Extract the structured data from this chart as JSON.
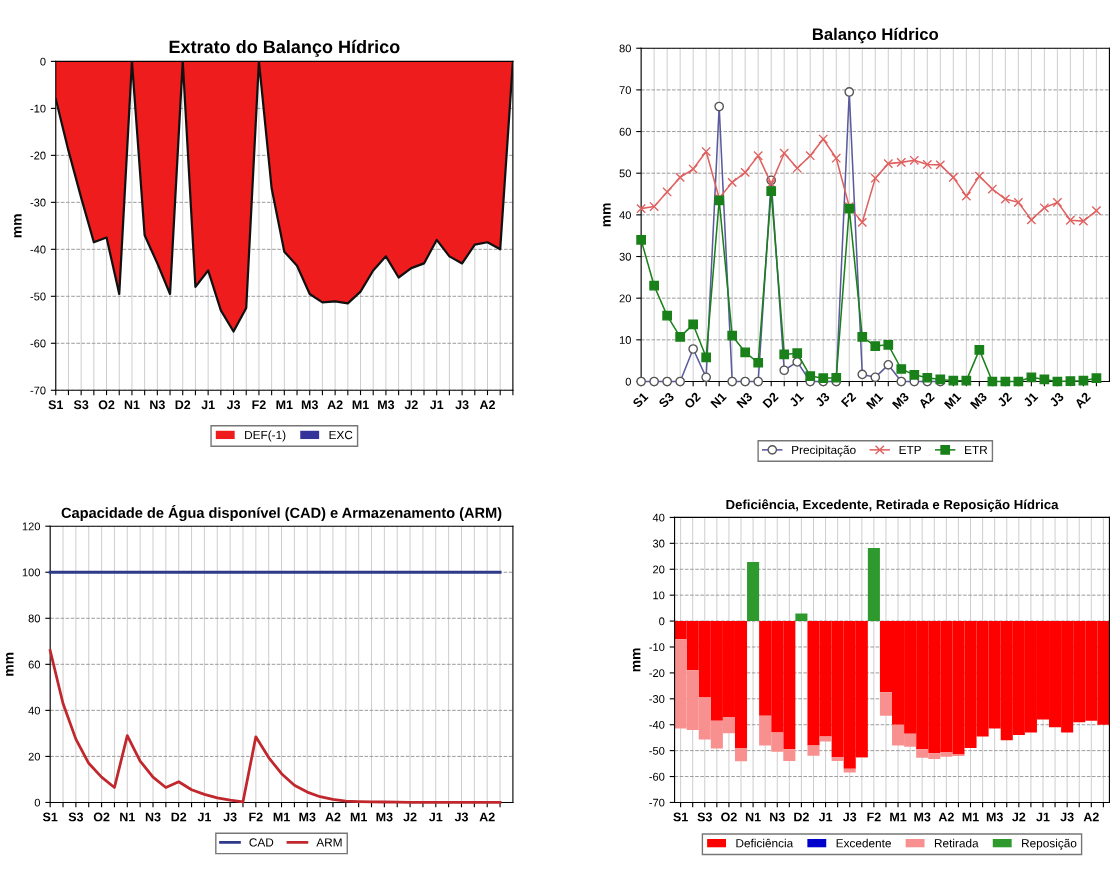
{
  "chart_data": [
    {
      "type": "area",
      "title": "Extrato do Balanço Hídrico",
      "ylabel": "mm",
      "categories": [
        "S1",
        null,
        "S3",
        null,
        "O2",
        null,
        "N1",
        null,
        "N3",
        null,
        "D2",
        null,
        "J1",
        null,
        "J3",
        null,
        "F2",
        null,
        "M1",
        null,
        "M3",
        null,
        "A2",
        null,
        "M1",
        null,
        "M3",
        null,
        "J2",
        null,
        "J1",
        null,
        "J3",
        null,
        "A2",
        null,
        null
      ],
      "series": [
        {
          "name": "DEF(-1)",
          "color": "#ee1c1c",
          "values": [
            -8,
            -19,
            -29,
            -38.5,
            -37.5,
            -49.5,
            0,
            -37,
            -43,
            -49.5,
            0,
            -48,
            -44.5,
            -53,
            -57.5,
            -52.5,
            0,
            -27,
            -40.5,
            -43.5,
            -49.5,
            -51.3,
            -51.1,
            -51.5,
            -49,
            -44.5,
            -41.5,
            -46,
            -44,
            -43,
            -38,
            -41.5,
            -43,
            -39,
            -38.5,
            -40,
            0
          ]
        },
        {
          "name": "EXC",
          "color": "#333399",
          "values": [
            null,
            null,
            null,
            null,
            null,
            null,
            null,
            null,
            null,
            null,
            null,
            null,
            null,
            null,
            null,
            null,
            null,
            null,
            null,
            null,
            null,
            null,
            null,
            null,
            null,
            null,
            null,
            null,
            null,
            null,
            null,
            null,
            null,
            null,
            null,
            null,
            null
          ]
        }
      ],
      "ylim": [
        -70,
        0
      ],
      "yticks": [
        -70,
        -60,
        -50,
        -40,
        -30,
        -20,
        -10,
        0
      ],
      "grid": true,
      "legend": "bottom"
    },
    {
      "type": "line",
      "title": "Balanço Hídrico",
      "ylabel": "mm",
      "categories": [
        "S1",
        null,
        "S3",
        null,
        "O2",
        null,
        "N1",
        null,
        "N3",
        null,
        "D2",
        null,
        "J1",
        null,
        "J3",
        null,
        "F2",
        null,
        "M1",
        null,
        "M3",
        null,
        "A2",
        null,
        "M1",
        null,
        "M3",
        null,
        "J2",
        null,
        "J1",
        null,
        "J3",
        null,
        "A2",
        null
      ],
      "series": [
        {
          "name": "Precipitação",
          "color": "#5a5a9e",
          "marker": "circle",
          "values": [
            0,
            0,
            0,
            0,
            7.8,
            1,
            66,
            0,
            0,
            0,
            48.3,
            2.7,
            4.7,
            0,
            0,
            0,
            69.5,
            1.7,
            1,
            4,
            0,
            0,
            0,
            0,
            null,
            null,
            null,
            null,
            null,
            null,
            null,
            null,
            null,
            null,
            null,
            null
          ]
        },
        {
          "name": "ETP",
          "color": "#e06060",
          "marker": "cross",
          "values": [
            41.5,
            42,
            45.5,
            49,
            51,
            55.2,
            44,
            47.8,
            50.2,
            54.2,
            47.5,
            54.8,
            51.2,
            54.2,
            58.2,
            53.6,
            42,
            38.2,
            48.8,
            52.3,
            52.6,
            53.1,
            52.1,
            52,
            49,
            44.5,
            49.3,
            46.2,
            43.8,
            43,
            38.8,
            41.7,
            43,
            38.7,
            38.5,
            41
          ]
        },
        {
          "name": "ETR",
          "color": "#1a801a",
          "marker": "square",
          "values": [
            34,
            23,
            15.8,
            10.7,
            13.7,
            5.8,
            43.5,
            11,
            7,
            4.5,
            45.7,
            6.5,
            6.8,
            1.3,
            0.8,
            0.9,
            41.5,
            10.7,
            8.5,
            8.8,
            3,
            1.6,
            0.9,
            0.5,
            0.2,
            0.2,
            7.6,
            0,
            0,
            0,
            1,
            0.5,
            0,
            0.1,
            0.2,
            0.8
          ]
        }
      ],
      "ylim": [
        0,
        80
      ],
      "yticks": [
        0,
        10,
        20,
        30,
        40,
        50,
        60,
        70,
        80
      ],
      "grid": true,
      "legend": "bottom"
    },
    {
      "type": "line",
      "title": "Capacidade de Água disponível (CAD) e Armazenamento (ARM)",
      "ylabel": "mm",
      "categories": [
        "S1",
        null,
        "S3",
        null,
        "O2",
        null,
        "N1",
        null,
        "N3",
        null,
        "D2",
        null,
        "J1",
        null,
        "J3",
        null,
        "F2",
        null,
        "M1",
        null,
        "M3",
        null,
        "A2",
        null,
        "M1",
        null,
        "M3",
        null,
        "J2",
        null,
        "J1",
        null,
        "J3",
        null,
        "A2",
        null
      ],
      "series": [
        {
          "name": "CAD",
          "color": "#2e3a87",
          "values": [
            100,
            100,
            100,
            100,
            100,
            100,
            100,
            100,
            100,
            100,
            100,
            100,
            100,
            100,
            100,
            100,
            100,
            100,
            100,
            100,
            100,
            100,
            100,
            100,
            100,
            100,
            100,
            100,
            100,
            100,
            100,
            100,
            100,
            100,
            100,
            100
          ]
        },
        {
          "name": "ARM",
          "color": "#c0282d",
          "values": [
            66,
            43,
            27.5,
            17,
            11,
            6.5,
            29,
            18,
            11,
            6.5,
            9,
            5.5,
            3.5,
            2,
            1,
            0.3,
            28.5,
            19.5,
            12.5,
            7.5,
            4.5,
            2.5,
            1.3,
            0.6,
            0.4,
            0.3,
            0.2,
            0.1,
            0,
            0,
            0,
            0,
            0,
            0,
            0,
            0
          ]
        }
      ],
      "ylim": [
        0,
        120
      ],
      "yticks": [
        0,
        20,
        40,
        60,
        80,
        100,
        120
      ],
      "grid": true,
      "legend": "bottom"
    },
    {
      "type": "bar",
      "stacked": true,
      "title": "Deficiência, Excedente, Retirada e Reposição Hídrica",
      "ylabel": "mm",
      "categories": [
        "S1",
        null,
        "S3",
        null,
        "O2",
        null,
        "N1",
        null,
        "N3",
        null,
        "D2",
        null,
        "J1",
        null,
        "J3",
        null,
        "F2",
        null,
        "M1",
        null,
        "M3",
        null,
        "A2",
        null,
        "M1",
        null,
        "M3",
        null,
        "J2",
        null,
        "J1",
        null,
        "J3",
        null,
        "A2",
        null
      ],
      "series": [
        {
          "name": "Deficiência",
          "color": "#ff0000",
          "values": [
            -7,
            -19,
            -29.5,
            -38.5,
            -37,
            -49,
            0,
            -36.5,
            -43,
            -49.5,
            0,
            -48,
            -44.5,
            -52.5,
            -57,
            -52.5,
            0,
            -27.5,
            -40,
            -43.5,
            -49.5,
            -51,
            -50.5,
            -51.5,
            -49,
            -44.5,
            -41.5,
            -46,
            -44,
            -43,
            -38,
            -41,
            -43,
            -39,
            -38.5,
            -40
          ]
        },
        {
          "name": "Excedente",
          "color": "#0000cc",
          "values": [
            0,
            0,
            0,
            0,
            0,
            0,
            0,
            0,
            0,
            0,
            0,
            0,
            0,
            0,
            0,
            0,
            0,
            0,
            0,
            0,
            0,
            0,
            0,
            0,
            0,
            0,
            0,
            0,
            0,
            0,
            0,
            0,
            0,
            0,
            0,
            0
          ]
        },
        {
          "name": "Retirada",
          "color": "#f99090",
          "values": [
            -34.5,
            -23,
            -16.2,
            -10.7,
            -6.3,
            -5.1,
            0,
            -11.5,
            -7.4,
            -4.5,
            0,
            -4,
            -2,
            -1.5,
            -1.4,
            -0.3,
            0,
            -9,
            -8,
            -5,
            -3.2,
            -2.2,
            -1.9,
            -0.6,
            0,
            0,
            0,
            0,
            0,
            0,
            0,
            0,
            0,
            0,
            0,
            0
          ]
        },
        {
          "name": "Reposição",
          "color": "#2e9a2e",
          "values": [
            0,
            0,
            0,
            0,
            0,
            0,
            22.8,
            0,
            0,
            0,
            2.9,
            0,
            0,
            0,
            0,
            0,
            28.2,
            0,
            0,
            0,
            0,
            0,
            0,
            0,
            0,
            0,
            0,
            0,
            0,
            0,
            0,
            0,
            0,
            0,
            0,
            0
          ]
        }
      ],
      "ylim": [
        -70,
        40
      ],
      "yticks": [
        -70,
        -60,
        -50,
        -40,
        -30,
        -20,
        -10,
        0,
        10,
        20,
        30,
        40
      ],
      "grid": true,
      "legend": "bottom"
    }
  ]
}
